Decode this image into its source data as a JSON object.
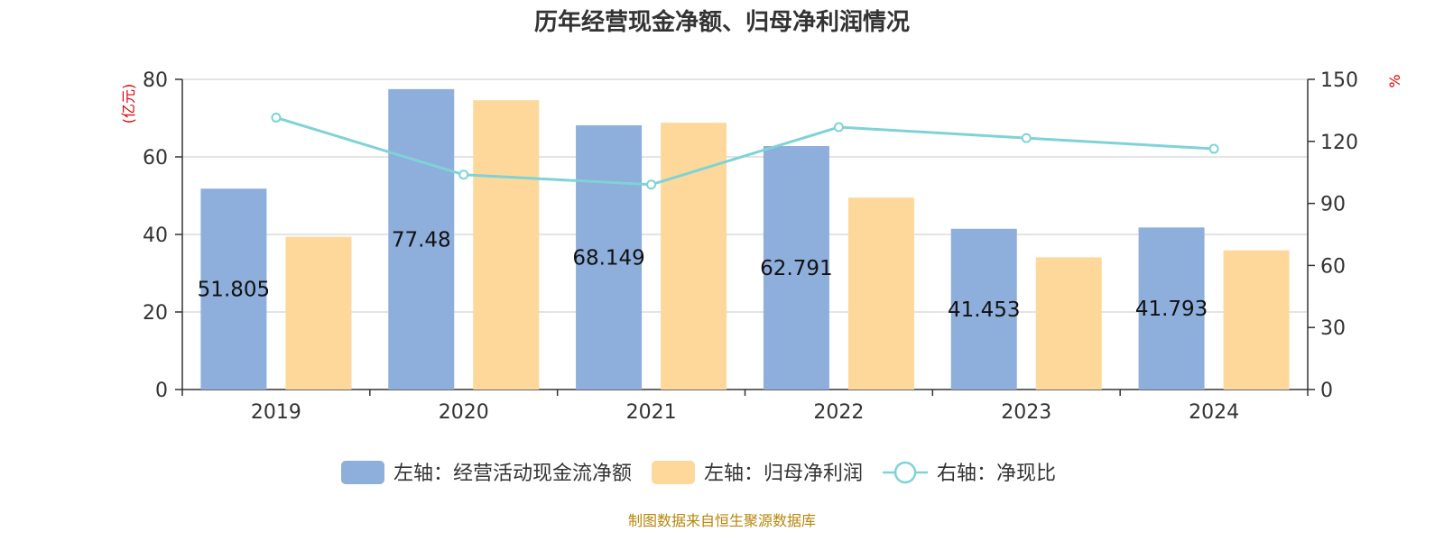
{
  "title": "历年经营现金净额、归母净利润情况",
  "source": "制图数据来自恒生聚源数据库",
  "chart_data": {
    "type": "bar",
    "categories": [
      "2019",
      "2020",
      "2021",
      "2022",
      "2023",
      "2024"
    ],
    "series": [
      {
        "name": "左轴：经营活动现金流净额",
        "type": "bar",
        "axis": "left",
        "color": "#8eaedb",
        "values": [
          51.805,
          77.48,
          68.149,
          62.791,
          41.453,
          41.793
        ],
        "labels": [
          "51.805",
          "77.48",
          "68.149",
          "62.791",
          "41.453",
          "41.793"
        ]
      },
      {
        "name": "左轴：归母净利润",
        "type": "bar",
        "axis": "left",
        "color": "#fdd89a",
        "values": [
          39.4,
          74.6,
          68.8,
          49.5,
          34.1,
          35.9
        ]
      },
      {
        "name": "右轴：净现比",
        "type": "line",
        "axis": "right",
        "color": "#7fd3d6",
        "values": [
          131.5,
          103.9,
          99.1,
          126.9,
          121.6,
          116.4
        ]
      }
    ],
    "left_axis": {
      "unit": "(亿元)",
      "ylim": [
        0,
        80
      ],
      "ticks": [
        "0",
        "20",
        "40",
        "60",
        "80"
      ]
    },
    "right_axis": {
      "unit": "%",
      "ylim": [
        0,
        150
      ],
      "ticks": [
        "0",
        "30",
        "60",
        "90",
        "120",
        "150"
      ]
    },
    "grid": true,
    "legend_position": "bottom"
  }
}
